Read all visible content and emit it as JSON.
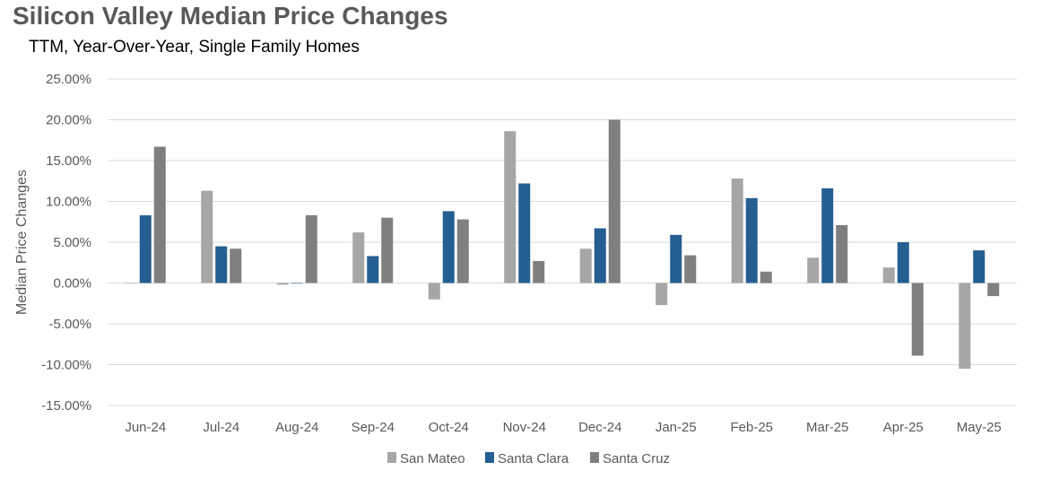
{
  "chart_data": {
    "type": "bar",
    "title": "Silicon Valley Median Price Changes",
    "subtitle": "TTM, Year-Over-Year, Single Family Homes",
    "xlabel": "",
    "ylabel": "Median Price Changes",
    "ylim": [
      -0.15,
      0.25
    ],
    "yticks": [
      0.25,
      0.2,
      0.15,
      0.1,
      0.05,
      0.0,
      -0.05,
      -0.1,
      -0.15
    ],
    "ytick_labels": [
      "25.00%",
      "20.00%",
      "15.00%",
      "10.00%",
      "5.00%",
      "0.00%",
      "-5.00%",
      "-10.00%",
      "-15.00%"
    ],
    "grid": true,
    "legend_position": "bottom",
    "categories": [
      "Jun-24",
      "Jul-24",
      "Aug-24",
      "Sep-24",
      "Oct-24",
      "Nov-24",
      "Dec-24",
      "Jan-25",
      "Feb-25",
      "Mar-25",
      "Apr-25",
      "May-25"
    ],
    "series": [
      {
        "name": "San Mateo",
        "color": "#A6A6A6",
        "values": [
          0.0,
          0.113,
          -0.002,
          0.062,
          -0.02,
          0.186,
          0.042,
          -0.027,
          0.128,
          0.031,
          0.019,
          -0.105
        ]
      },
      {
        "name": "Santa Clara",
        "color": "#255E91",
        "values": [
          0.083,
          0.045,
          0.0,
          0.033,
          0.088,
          0.122,
          0.067,
          0.059,
          0.104,
          0.116,
          0.05,
          0.04
        ]
      },
      {
        "name": "Santa Cruz",
        "color": "#7F7F7F",
        "values": [
          0.167,
          0.042,
          0.083,
          0.08,
          0.078,
          0.027,
          0.2,
          0.034,
          0.014,
          0.071,
          -0.089,
          -0.016
        ]
      }
    ]
  }
}
